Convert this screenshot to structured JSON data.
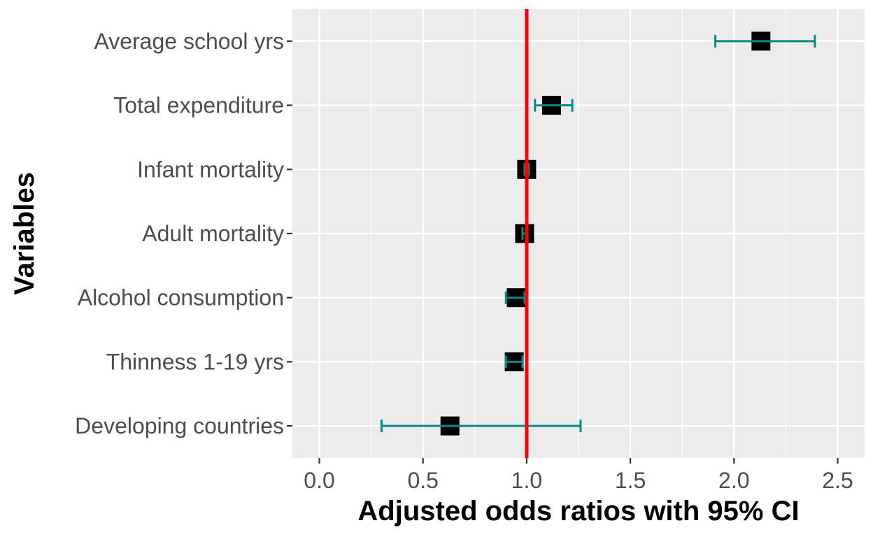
{
  "chart_data": {
    "type": "forest",
    "title": "",
    "xlabel": "Adjusted odds ratios with 95% CI",
    "ylabel": "Variables",
    "xlim": [
      -0.13,
      2.63
    ],
    "x_ticks": [
      0.0,
      0.5,
      1.0,
      1.5,
      2.0,
      2.5
    ],
    "x_tick_labels": [
      "0.0",
      "0.5",
      "1.0",
      "1.5",
      "2.0",
      "2.5"
    ],
    "reference_line": 1.0,
    "grid": true,
    "legend": "none",
    "categories": [
      "Average school yrs",
      "Total expenditure",
      "Infant mortality",
      "Adult mortality",
      "Alcohol consumption",
      "Thinness 1-19 yrs",
      "Developing countries"
    ],
    "estimates": [
      2.13,
      1.12,
      1.0,
      0.99,
      0.95,
      0.94,
      0.63
    ],
    "ci_lower": [
      1.91,
      1.04,
      0.99,
      0.98,
      0.9,
      0.9,
      0.3
    ],
    "ci_upper": [
      2.39,
      1.22,
      1.01,
      1.0,
      0.99,
      0.98,
      1.26
    ]
  },
  "colors": {
    "panel_background": "#ebebeb",
    "grid": "#ffffff",
    "point": "#000000",
    "error_bar": "#008b8b",
    "reference_line": "#ff0000",
    "tick_label": "#4d4d4d"
  }
}
